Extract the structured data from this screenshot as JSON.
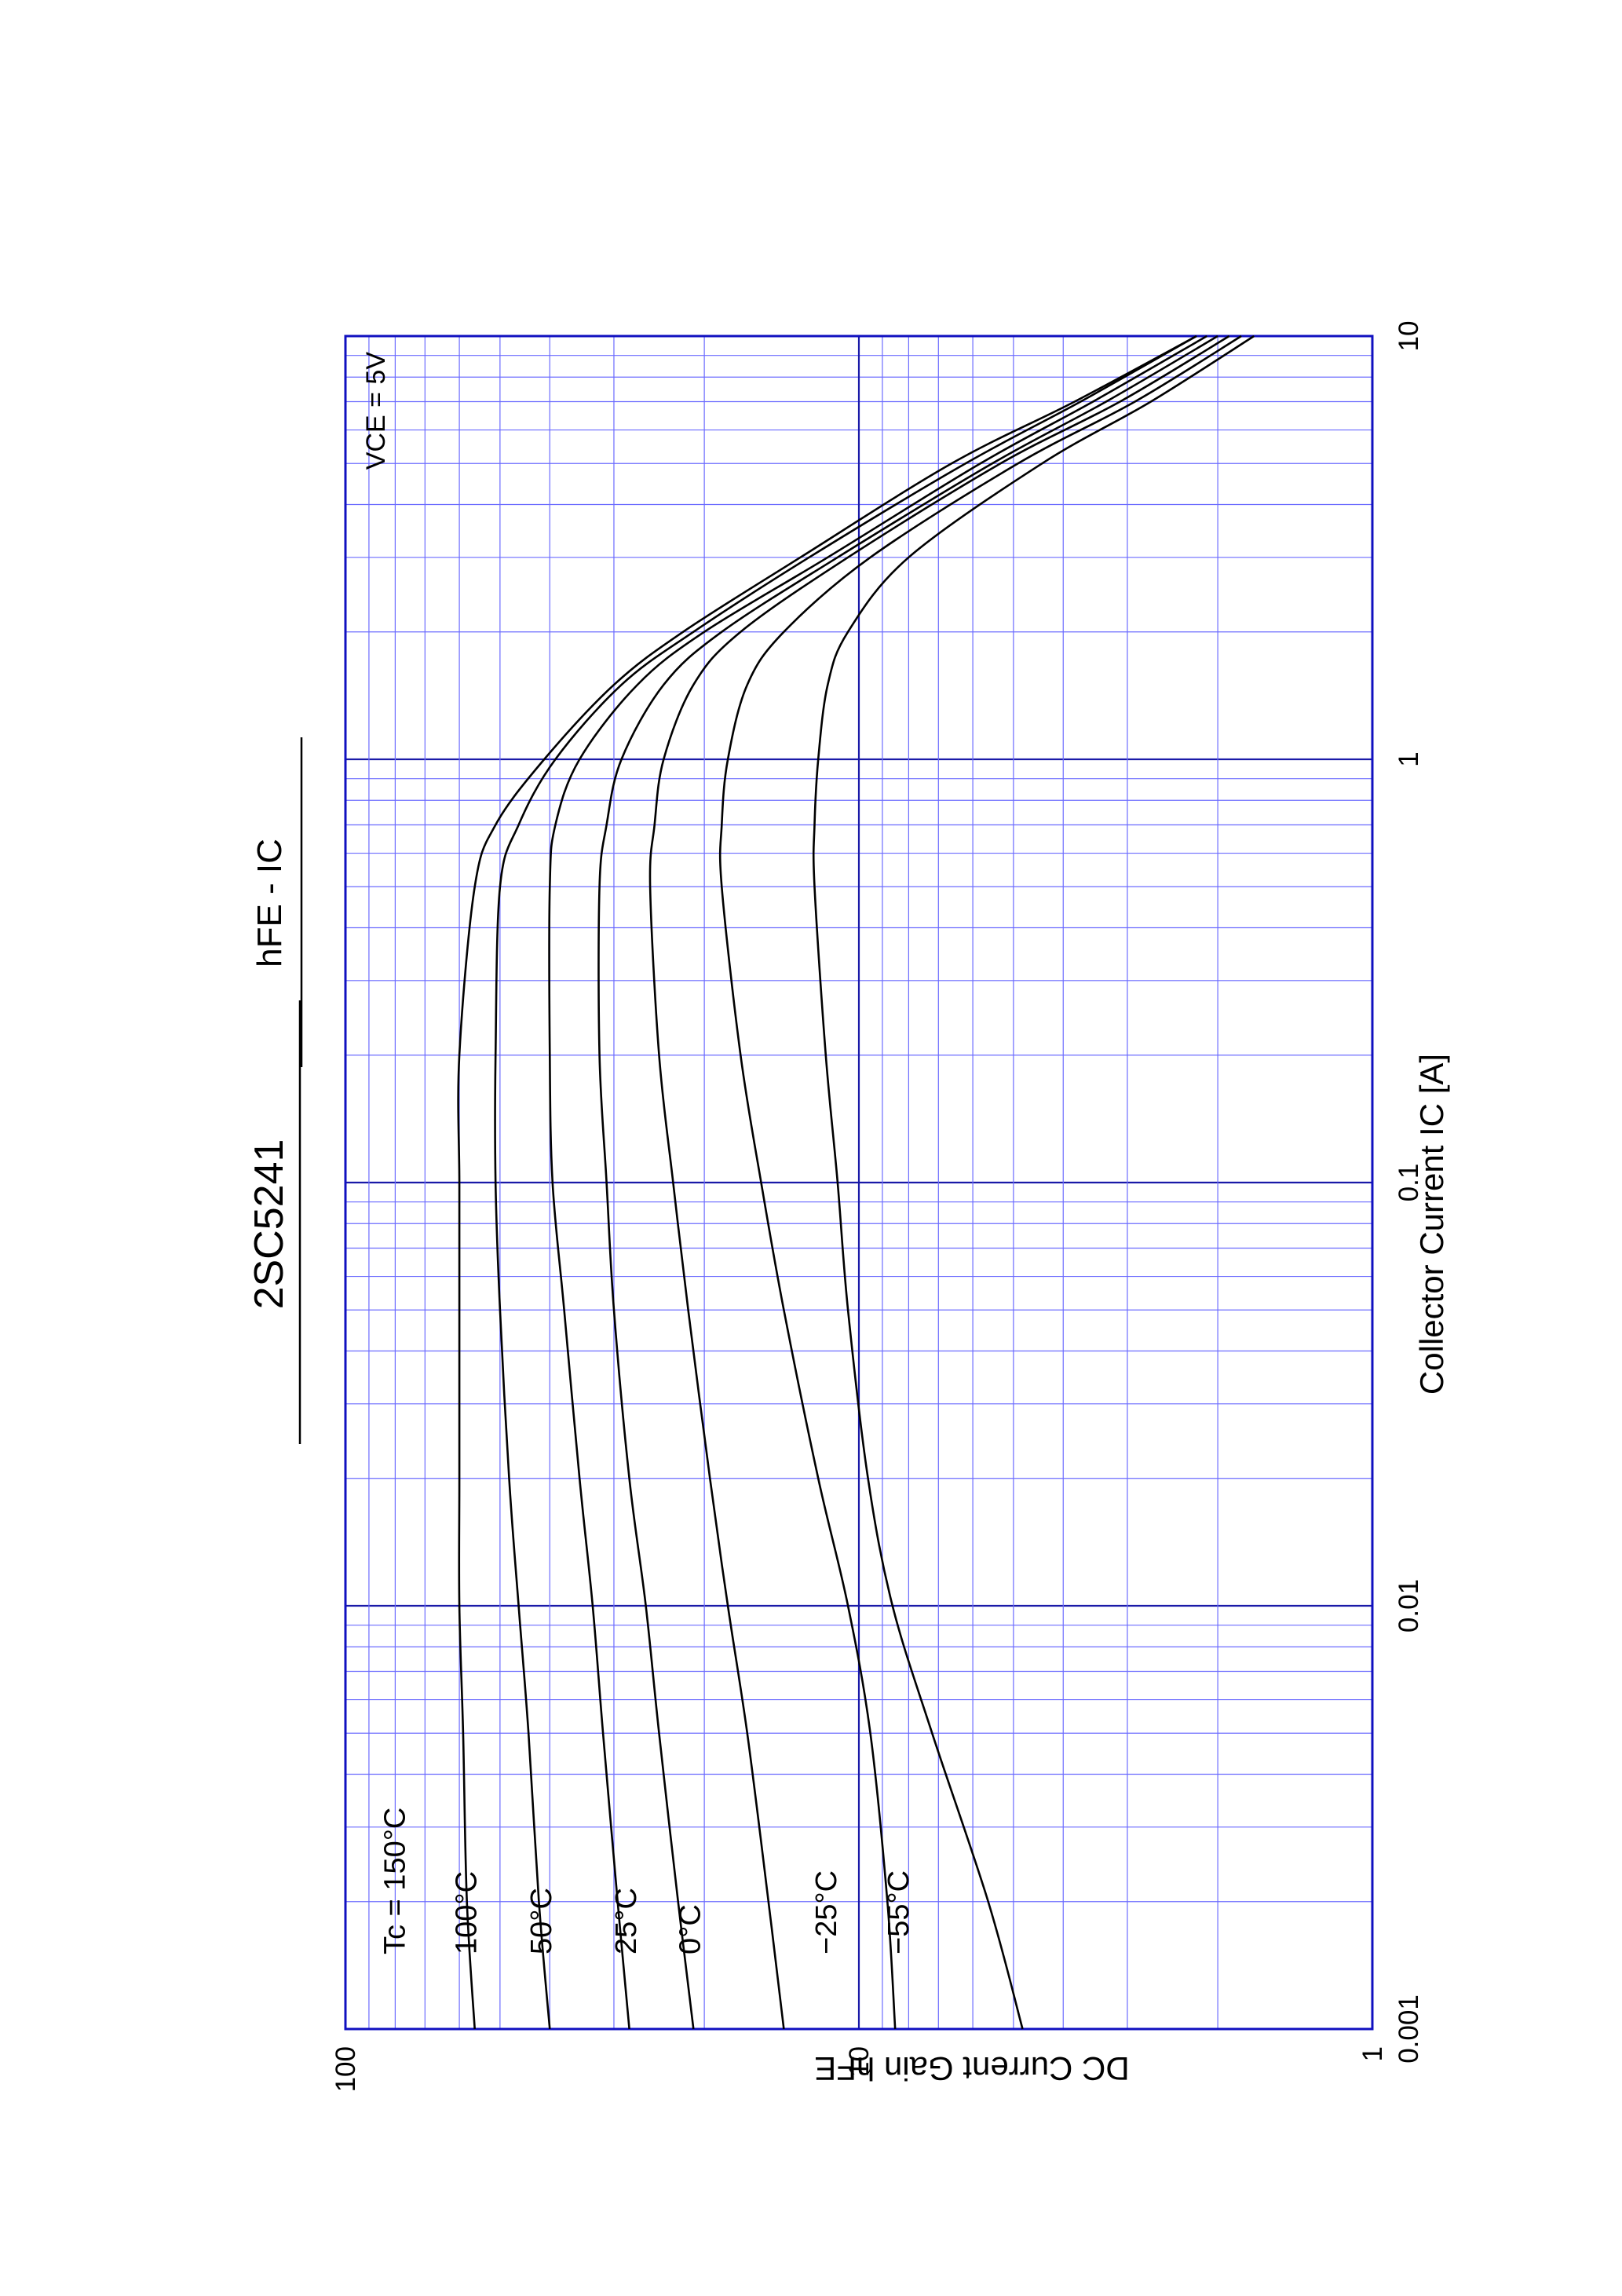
{
  "chart_data": {
    "type": "line",
    "title": "2SC5241",
    "subtitle": "hFE - IC",
    "xlabel": "Collector Current  IC [A]",
    "ylabel": "DC Current Gain  hFE",
    "condition": "VCE = 5V",
    "xscale": "log",
    "yscale": "log",
    "xlim": [
      0.001,
      10
    ],
    "ylim": [
      1,
      100
    ],
    "xticks": [
      "0.001",
      "0.01",
      "0.1",
      "1",
      "10"
    ],
    "yticks": [
      "1",
      "10",
      "100"
    ],
    "grid": true,
    "series": [
      {
        "name": "Tc = 150°C",
        "x": [
          0.001,
          0.002,
          0.005,
          0.01,
          0.02,
          0.05,
          0.1,
          0.2,
          0.5,
          0.7,
          1,
          1.5,
          2,
          3,
          5,
          7,
          10
        ],
        "y": [
          56,
          58,
          59,
          60,
          60,
          60,
          60,
          60,
          56,
          51,
          41,
          30,
          22,
          13,
          6.6,
          3.8,
          2.2
        ]
      },
      {
        "name": "100°C",
        "x": [
          0.001,
          0.002,
          0.005,
          0.01,
          0.02,
          0.05,
          0.1,
          0.2,
          0.5,
          0.7,
          1,
          1.5,
          2,
          3,
          5,
          7,
          10
        ],
        "y": [
          40,
          42,
          44,
          46,
          48,
          50,
          51,
          51,
          50,
          46,
          39,
          29,
          21,
          12.5,
          6.2,
          3.7,
          2.2
        ]
      },
      {
        "name": "50°C",
        "x": [
          0.001,
          0.002,
          0.005,
          0.01,
          0.02,
          0.05,
          0.1,
          0.2,
          0.5,
          0.7,
          1,
          1.5,
          2,
          3,
          5,
          7,
          10
        ],
        "y": [
          28,
          29.5,
          31.5,
          33,
          35,
          37.5,
          39.5,
          40,
          40,
          39,
          35,
          27,
          20,
          11.5,
          5.8,
          3.5,
          2.1
        ]
      },
      {
        "name": "25°C",
        "x": [
          0.001,
          0.002,
          0.005,
          0.01,
          0.02,
          0.05,
          0.1,
          0.2,
          0.5,
          0.7,
          1,
          1.5,
          2,
          3,
          5,
          7,
          10
        ],
        "y": [
          21,
          22.5,
          24.5,
          26,
          28,
          30,
          31,
          32,
          32,
          31,
          29,
          24,
          18.5,
          11,
          5.5,
          3.3,
          2.0
        ]
      },
      {
        "name": "0°C",
        "x": [
          0.001,
          0.002,
          0.005,
          0.01,
          0.02,
          0.05,
          0.1,
          0.2,
          0.5,
          0.7,
          1,
          1.5,
          2,
          3,
          5,
          7,
          10
        ],
        "y": [
          14,
          15,
          16.5,
          18,
          19.5,
          21.5,
          23,
          24.5,
          25.5,
          25,
          24,
          21,
          17,
          10.5,
          5.3,
          3.1,
          1.9
        ]
      },
      {
        "name": "−25°C",
        "x": [
          0.001,
          0.002,
          0.005,
          0.01,
          0.02,
          0.05,
          0.1,
          0.2,
          0.5,
          0.7,
          1,
          1.5,
          2,
          3,
          5,
          7,
          10
        ],
        "y": [
          8.5,
          8.8,
          9.5,
          10.5,
          12,
          14,
          15.5,
          17,
          18.5,
          18.5,
          18,
          16.5,
          14,
          9.5,
          4.9,
          2.9,
          1.8
        ]
      },
      {
        "name": "−55°C",
        "x": [
          0.001,
          0.002,
          0.005,
          0.01,
          0.02,
          0.05,
          0.1,
          0.2,
          0.5,
          0.7,
          1,
          1.5,
          2,
          3,
          5,
          7,
          10
        ],
        "y": [
          4.8,
          5.6,
          7.2,
          8.6,
          9.6,
          10.5,
          11,
          11.6,
          12.2,
          12.2,
          12,
          11.5,
          10.5,
          8,
          4.4,
          2.7,
          1.7
        ]
      }
    ]
  }
}
